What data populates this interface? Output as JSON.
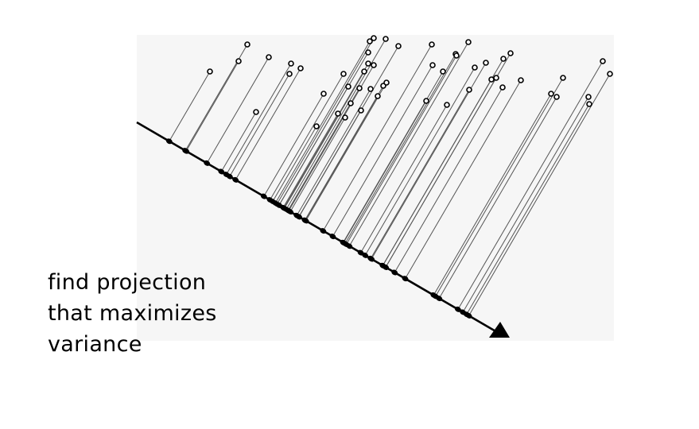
{
  "caption": {
    "lines": [
      "find projection",
      "that maximizes",
      "variance"
    ]
  },
  "colors": {
    "background": "#ffffff",
    "panel": "#f6f6f6",
    "ink": "#000000",
    "projector": "#555555"
  },
  "icons": {
    "arrow": "arrowhead-icon"
  }
}
